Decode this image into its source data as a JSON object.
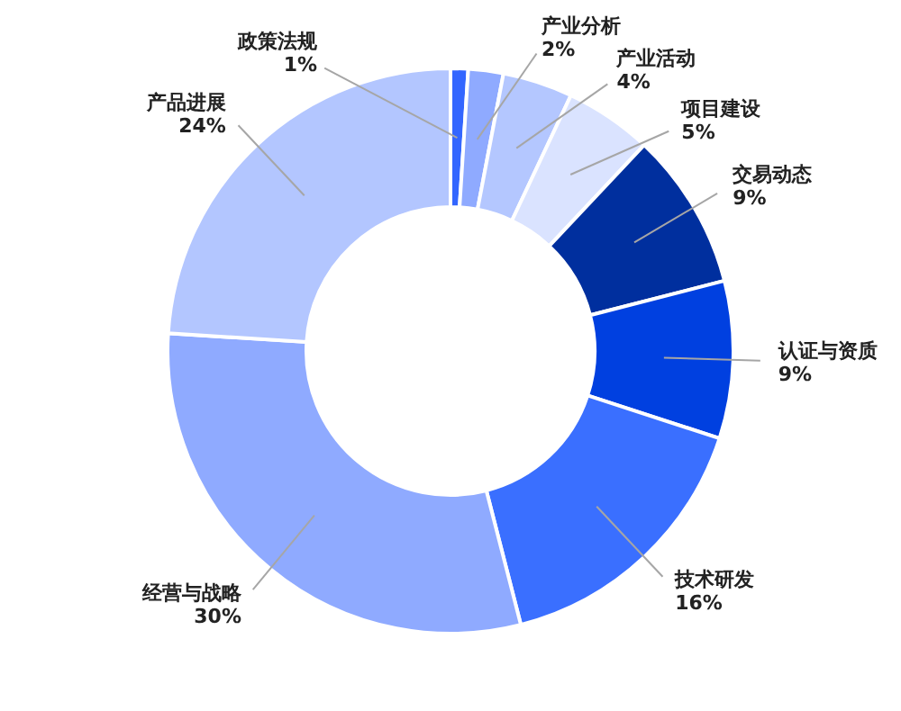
{
  "chart_data": {
    "type": "donut",
    "categories": [
      "政策法规",
      "产业分析",
      "产业活动",
      "项目建设",
      "交易动态",
      "认证与资质",
      "技术研发",
      "经营与战略",
      "产品进展"
    ],
    "values": [
      1,
      2,
      4,
      5,
      9,
      9,
      16,
      30,
      24
    ],
    "colors": [
      "#3366ff",
      "#8faaff",
      "#b4c7ff",
      "#dae3ff",
      "#002f9e",
      "#0040e0",
      "#3a6fff",
      "#8faaff",
      "#b3c6ff"
    ],
    "value_labels": [
      "1%",
      "2%",
      "4%",
      "5%",
      "9%",
      "9%",
      "16%",
      "30%",
      "24%"
    ]
  }
}
